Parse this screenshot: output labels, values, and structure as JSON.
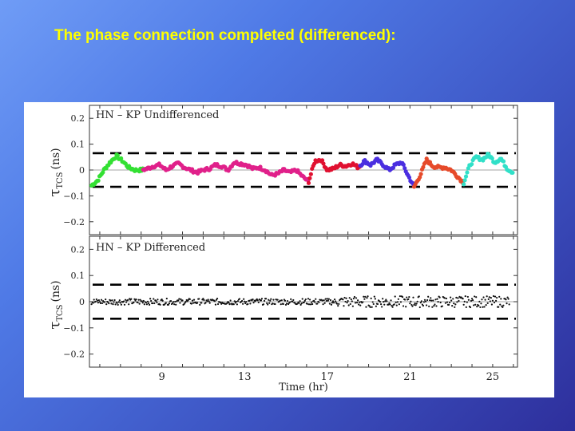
{
  "slide": {
    "title": "The phase connection completed (differenced):"
  },
  "chart_data": [
    {
      "type": "scatter",
      "title": "HN – KP Undifferenced",
      "ylabel": {
        "symbol": "τ",
        "subscript": "TCS",
        "unit": "(ns)"
      },
      "xlabel": "",
      "xlim": [
        5.5,
        26.2
      ],
      "ylim": [
        -0.25,
        0.25
      ],
      "yticks": [
        0.2,
        0.1,
        0,
        -0.1,
        -0.2
      ],
      "ytick_labels": [
        "0.2",
        "0.1",
        "0",
        "−0.1",
        "−0.2"
      ],
      "threshold_lines": [
        0.065,
        -0.065
      ],
      "grid": false,
      "series": [
        {
          "color": "#33e033",
          "x_range": [
            5.6,
            8.1
          ]
        },
        {
          "color": "#e0208a",
          "x_range": [
            8.1,
            16.1
          ]
        },
        {
          "color": "#e01030",
          "x_range": [
            16.1,
            18.6
          ]
        },
        {
          "color": "#4a2ee0",
          "x_range": [
            18.6,
            21.2
          ]
        },
        {
          "color": "#e64a2a",
          "x_range": [
            21.2,
            23.6
          ]
        },
        {
          "color": "#30e0c8",
          "x_range": [
            23.6,
            26.0
          ]
        }
      ],
      "trace": {
        "x": [
          5.6,
          5.9,
          6.2,
          6.5,
          6.8,
          7.1,
          7.4,
          7.7,
          8.0,
          8.3,
          8.6,
          8.9,
          9.2,
          9.5,
          9.8,
          10.1,
          10.4,
          10.7,
          11.0,
          11.3,
          11.6,
          11.9,
          12.2,
          12.5,
          12.8,
          13.1,
          13.4,
          13.7,
          14.0,
          14.3,
          14.6,
          14.9,
          15.2,
          15.5,
          15.8,
          16.1,
          16.4,
          16.7,
          17.0,
          17.3,
          17.6,
          17.9,
          18.2,
          18.5,
          18.8,
          19.1,
          19.4,
          19.7,
          20.0,
          20.3,
          20.6,
          20.9,
          21.2,
          21.5,
          21.8,
          22.1,
          22.4,
          22.7,
          23.0,
          23.3,
          23.6,
          23.9,
          24.2,
          24.5,
          24.8,
          25.1,
          25.4,
          25.7,
          26.0
        ],
        "y": [
          -0.06,
          -0.04,
          0.0,
          0.03,
          0.055,
          0.035,
          0.01,
          0.0,
          0.0,
          0.005,
          0.015,
          0.02,
          0.0,
          0.015,
          0.025,
          0.01,
          0.0,
          -0.01,
          0.0,
          0.005,
          0.02,
          0.015,
          0.0,
          0.03,
          0.025,
          0.02,
          0.005,
          0.01,
          0.0,
          -0.02,
          -0.015,
          0.0,
          -0.01,
          0.0,
          -0.025,
          -0.045,
          0.035,
          0.04,
          0.0,
          0.005,
          0.02,
          0.015,
          0.025,
          0.01,
          0.035,
          0.02,
          0.04,
          0.02,
          0.0,
          0.02,
          0.03,
          -0.02,
          -0.065,
          -0.02,
          0.04,
          0.015,
          0.01,
          0.01,
          0.0,
          -0.025,
          -0.05,
          0.02,
          0.05,
          0.04,
          0.06,
          0.03,
          0.045,
          0.005,
          -0.01
        ]
      }
    },
    {
      "type": "scatter",
      "title": "HN – KP Differenced",
      "ylabel": {
        "symbol": "τ",
        "subscript": "TCS",
        "unit": "(ns)"
      },
      "xlabel": "Time (hr)",
      "xlim": [
        5.5,
        26.2
      ],
      "ylim": [
        -0.25,
        0.25
      ],
      "yticks": [
        0.2,
        0.1,
        0,
        -0.1,
        -0.2
      ],
      "ytick_labels": [
        "0.2",
        "0.1",
        "0",
        "−0.1",
        "−0.2"
      ],
      "xticks": [
        9,
        13,
        17,
        21,
        25
      ],
      "xtick_labels": [
        "9",
        "13",
        "17",
        "21",
        "25"
      ],
      "threshold_lines": [
        0.065,
        -0.065
      ],
      "grid": false,
      "series": [
        {
          "color": "#111111",
          "x_range": [
            5.6,
            25.8
          ],
          "center": 0.0,
          "spread": 0.012
        }
      ]
    }
  ]
}
